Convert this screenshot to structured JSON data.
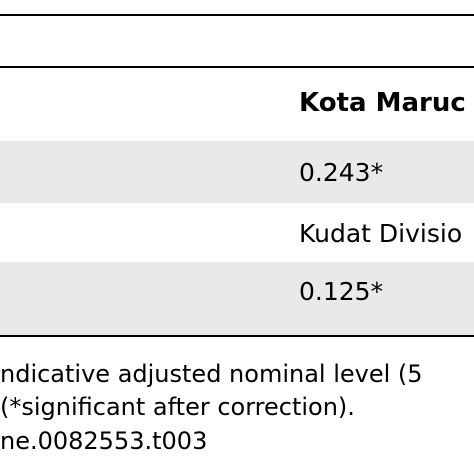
{
  "table": {
    "header": {
      "column_label": "Kota Maruc"
    },
    "rows": [
      {
        "value": "0.243*"
      },
      {
        "value": "Kudat Divisio"
      },
      {
        "value": "0.125*"
      }
    ]
  },
  "footnotes": {
    "line1": "ndicative adjusted nominal level (5",
    "line2": "(*significant after correction).",
    "line3": "ne.0082553.t003"
  },
  "colors": {
    "shaded_row": "#e9e9e9",
    "rule": "#000000",
    "text": "#000000"
  }
}
